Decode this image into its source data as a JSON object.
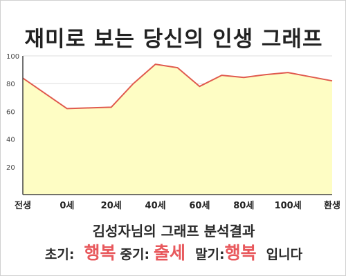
{
  "title": "재미로 보는 당신의 인생 그래프",
  "colors": {
    "line": "#e05a4e",
    "fill": "#fefdc4",
    "plot_bg": "#ffffff",
    "grid": "#dddddd",
    "highlight": "#e8585c"
  },
  "chart_data": {
    "type": "area",
    "title": "재미로 보는 당신의 인생 그래프",
    "xlabel": "",
    "ylabel": "",
    "x_ticks": [
      "전생",
      "0세",
      "20세",
      "40세",
      "60세",
      "80세",
      "100세",
      "환생"
    ],
    "x_range": [
      -20,
      120
    ],
    "ylim": [
      0,
      100
    ],
    "y_ticks": [
      20,
      40,
      60,
      80,
      100
    ],
    "grid": true,
    "legend": "none",
    "points": [
      {
        "x": -20,
        "y": 84
      },
      {
        "x": 0,
        "y": 62
      },
      {
        "x": 10,
        "y": 62.5
      },
      {
        "x": 20,
        "y": 63
      },
      {
        "x": 30,
        "y": 80
      },
      {
        "x": 40,
        "y": 94
      },
      {
        "x": 50,
        "y": 91.5
      },
      {
        "x": 60,
        "y": 78
      },
      {
        "x": 70,
        "y": 86
      },
      {
        "x": 80,
        "y": 84.5
      },
      {
        "x": 90,
        "y": 86.5
      },
      {
        "x": 100,
        "y": 88
      },
      {
        "x": 110,
        "y": 85
      },
      {
        "x": 120,
        "y": 82
      }
    ]
  },
  "summary": {
    "text": "김성자님의 그래프 분석결과"
  },
  "verdict": {
    "early_label": "초기:",
    "early_value": "행복",
    "middle_label": "중기:",
    "middle_value": "출세",
    "late_label": "말기:",
    "late_value": "행복",
    "suffix": "입니다"
  }
}
